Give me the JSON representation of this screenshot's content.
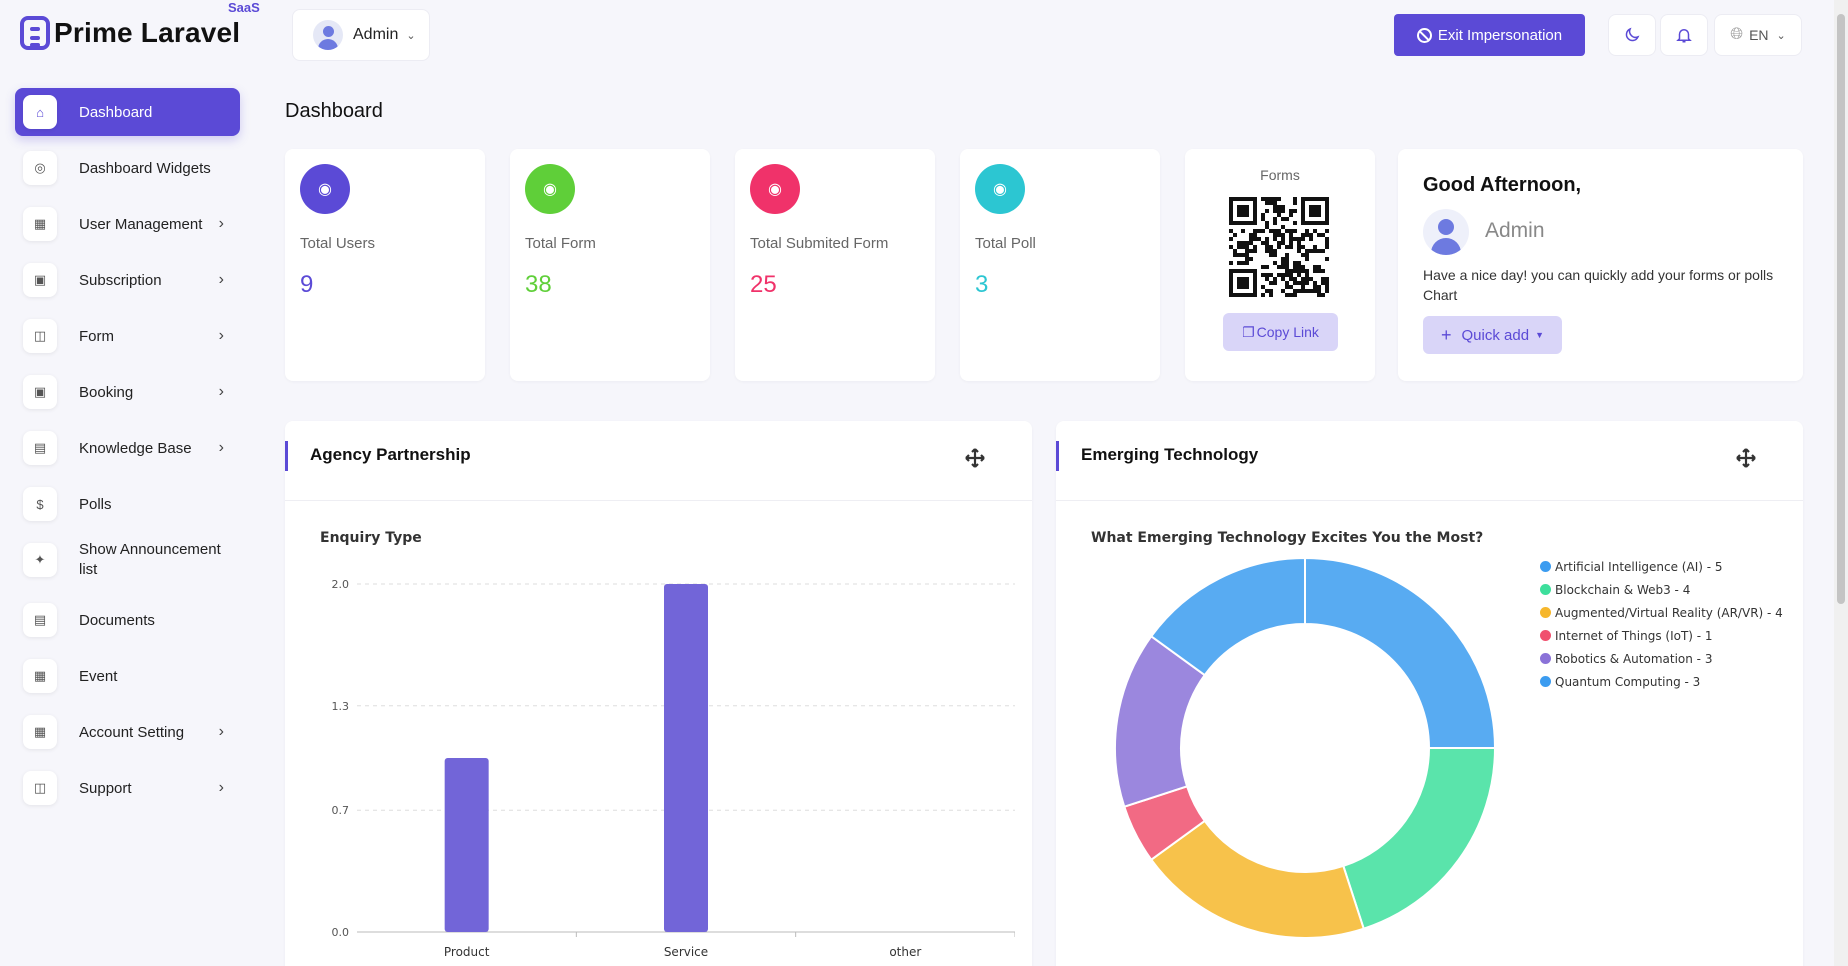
{
  "header": {
    "app_name": "Prime Laravel",
    "app_tag": "SaaS",
    "user_name": "Admin",
    "exit_label": "Exit Impersonation",
    "lang": "EN"
  },
  "sidebar": {
    "items": [
      {
        "label": "Dashboard",
        "icon": "home-icon",
        "active": true,
        "has_arrow": false
      },
      {
        "label": "Dashboard Widgets",
        "icon": "gauge-icon",
        "has_arrow": false
      },
      {
        "label": "User Management",
        "icon": "grid-icon",
        "has_arrow": true
      },
      {
        "label": "Subscription",
        "icon": "gift-icon",
        "has_arrow": true
      },
      {
        "label": "Form",
        "icon": "table-icon",
        "has_arrow": true
      },
      {
        "label": "Booking",
        "icon": "square-icon",
        "has_arrow": true
      },
      {
        "label": "Knowledge Base",
        "icon": "book-icon",
        "has_arrow": true
      },
      {
        "label": "Polls",
        "icon": "dollar-circle-icon",
        "has_arrow": false
      },
      {
        "label": "Show Announcement list",
        "icon": "sparkle-icon",
        "has_arrow": false
      },
      {
        "label": "Documents",
        "icon": "document-icon",
        "has_arrow": false
      },
      {
        "label": "Event",
        "icon": "calendar-icon",
        "has_arrow": false
      },
      {
        "label": "Account Setting",
        "icon": "grid-icon",
        "has_arrow": true
      },
      {
        "label": "Support",
        "icon": "table-icon",
        "has_arrow": true
      }
    ]
  },
  "main": {
    "title": "Dashboard",
    "stats": [
      {
        "label": "Total Users",
        "value": "9",
        "color": "#5b4ad6",
        "icon": "users-icon"
      },
      {
        "label": "Total Form",
        "value": "38",
        "color": "#5fcf39",
        "icon": "form-icon"
      },
      {
        "label": "Total Submited Form",
        "value": "25",
        "color": "#f0326a",
        "icon": "submitted-form-icon"
      },
      {
        "label": "Total Poll",
        "value": "3",
        "color": "#2cc6d2",
        "icon": "poll-icon"
      }
    ],
    "qr": {
      "title": "Forms",
      "copy_label": "Copy Link"
    },
    "greeting": {
      "title": "Good Afternoon,",
      "name": "Admin",
      "text": "Have a nice day! you can quickly add your forms or polls Chart",
      "quick_label": "Quick add"
    },
    "panels": {
      "left_title": "Agency Partnership",
      "right_title": "Emerging Technology"
    }
  },
  "chart_data": [
    {
      "type": "bar",
      "title": "Enquiry Type",
      "categories": [
        "Product",
        "Service",
        "other"
      ],
      "values": [
        1,
        2,
        0
      ],
      "ylim": [
        0,
        2
      ],
      "yticks": [
        "0.0",
        "0.7",
        "1.3",
        "2.0"
      ],
      "grid": true,
      "color": "#7265d8"
    },
    {
      "type": "pie",
      "title": "What Emerging Technology Excites You the Most?",
      "legend_position": "right",
      "series": [
        {
          "name": "Artificial Intelligence (AI) - 5",
          "value": 5,
          "color": "#3b9cf0"
        },
        {
          "name": "Blockchain & Web3 - 4",
          "value": 4,
          "color": "#3ddf9c"
        },
        {
          "name": "Augmented/Virtual Reality (AR/VR) - 4",
          "value": 4,
          "color": "#f6b72c"
        },
        {
          "name": "Internet of Things (IoT) - 1",
          "value": 1,
          "color": "#f0506e"
        },
        {
          "name": "Robotics & Automation - 3",
          "value": 3,
          "color": "#8a72d8"
        },
        {
          "name": "Quantum Computing - 3",
          "value": 3,
          "color": "#3b9cf0"
        }
      ]
    }
  ]
}
